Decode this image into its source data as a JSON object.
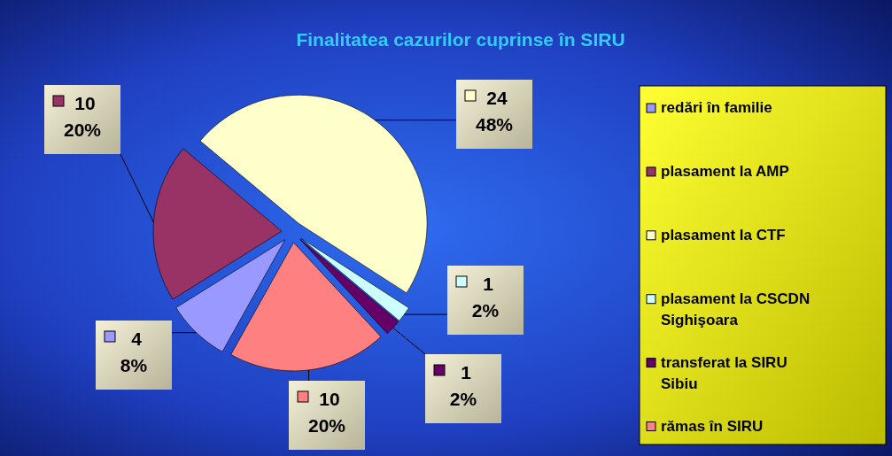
{
  "chart_data": {
    "type": "pie",
    "title": "Finalitatea cazurilor cuprinse în SIRU",
    "categories": [
      "redări în familie",
      "plasament la AMP",
      "plasament la CTF",
      "plasament la CSCDN Sighişoara",
      "transferat la SIRU Sibiu",
      "rămas în SIRU"
    ],
    "values": [
      4,
      10,
      24,
      1,
      1,
      10
    ],
    "value_labels": [
      "4\n8%",
      "10\n20%",
      "24\n48%",
      "1\n2%",
      "1\n2%",
      "10\n20%"
    ],
    "colors": [
      "#9999ff",
      "#993366",
      "#ffffcc",
      "#ccffff",
      "#660066",
      "#ff8080"
    ],
    "legend": "right"
  }
}
